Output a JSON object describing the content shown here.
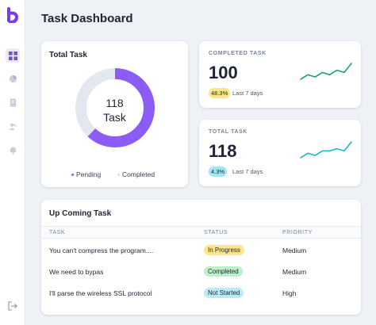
{
  "app": {
    "logo_icon": "b-logo-icon",
    "brand_color": "#7c3aed"
  },
  "sidebar": {
    "items": [
      {
        "icon": "dashboard-grid-icon",
        "active": true
      },
      {
        "icon": "pie-chart-icon",
        "active": false
      },
      {
        "icon": "document-icon",
        "active": false
      },
      {
        "icon": "users-icon",
        "active": false
      },
      {
        "icon": "bell-icon",
        "active": false
      }
    ],
    "logout_icon": "logout-icon"
  },
  "header": {
    "title": "Task Dashboard"
  },
  "total_task": {
    "title": "Total Task",
    "count": "118",
    "unit": "Task",
    "completed_fraction": 0.62,
    "legend": [
      {
        "label": "Pending",
        "color": "#8b5cf6"
      },
      {
        "label": "Completed",
        "color": "#e3e8f0"
      }
    ]
  },
  "completed_task": {
    "label": "COMPLETED TASK",
    "value": "100",
    "badge": "48.3%",
    "badge_color": "#fde58a",
    "note": "Last 7 days",
    "line_color": "#1f9e7a",
    "spark": [
      2,
      4,
      3,
      5,
      4,
      6,
      5,
      9
    ]
  },
  "total_task_stat": {
    "label": "TOTAL TASK",
    "value": "118",
    "badge": "4.3%",
    "badge_color": "#9ee7f2",
    "note": "Last 7 days",
    "line_color": "#1ab8cf",
    "spark": [
      1,
      3,
      2,
      4,
      4,
      5,
      4,
      8
    ]
  },
  "upcoming": {
    "title": "Up Coming Task",
    "columns": {
      "task": "TASK",
      "status": "STATUS",
      "priority": "PRIORITY"
    },
    "rows": [
      {
        "task": "You can't compress the program....",
        "status": "In Progress",
        "status_color": "#fde68a",
        "priority": "Medium"
      },
      {
        "task": "We need to bypas",
        "status": "Completed",
        "status_color": "#bbf0c9",
        "priority": "Medium"
      },
      {
        "task": "I'll parse the wireless SSL protocol",
        "status": "Not Started",
        "status_color": "#b9ecf7",
        "priority": "High"
      }
    ]
  }
}
